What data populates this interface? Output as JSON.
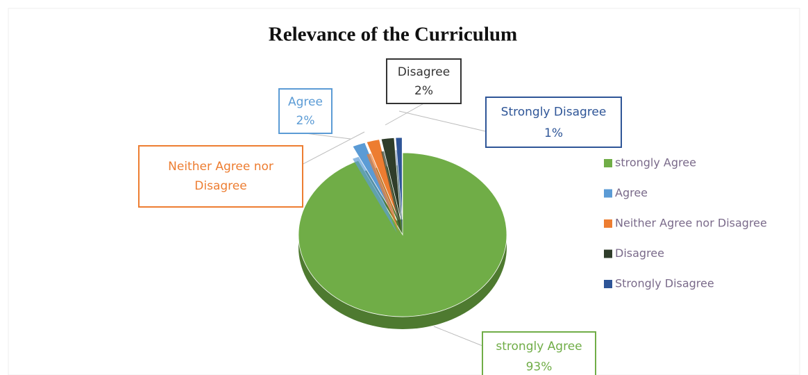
{
  "chart_data": {
    "type": "pie",
    "title": "Relevance of the Curriculum",
    "categories": [
      "strongly Agree",
      "Agree",
      "Neither Agree nor Disagree",
      "Disagree",
      "Strongly Disagree"
    ],
    "values": [
      93,
      2,
      2,
      2,
      1
    ],
    "value_labels": [
      "93%",
      "2%",
      null,
      "2%",
      "1%"
    ],
    "colors": [
      "#70ad47",
      "#5b9bd5",
      "#ed7d31",
      "#2f3d2a",
      "#2e5597"
    ],
    "legend": "right"
  }
}
